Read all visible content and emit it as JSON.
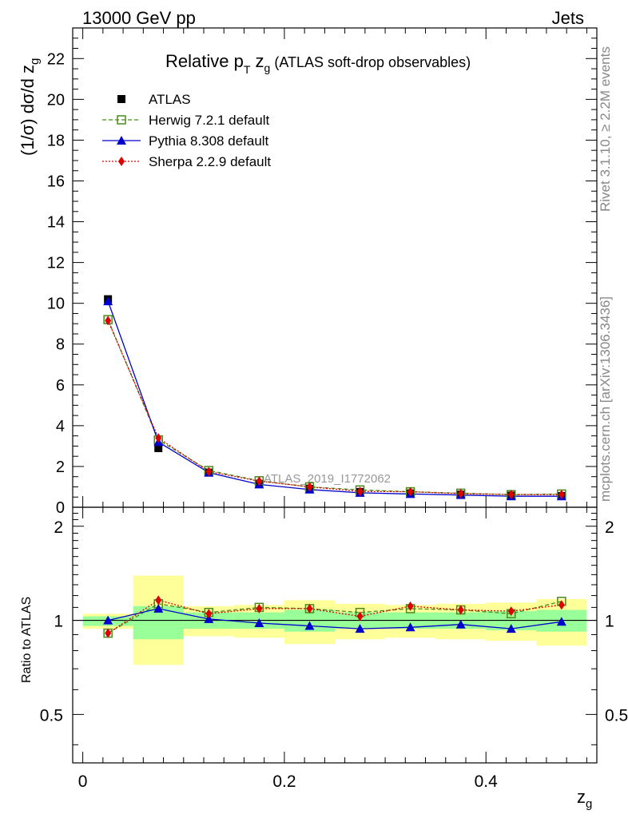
{
  "header": {
    "left": "13000 GeV pp",
    "right": "Jets"
  },
  "side_labels": {
    "rivet": "Rivet 3.1.10, ≥ 2.2M events",
    "mcplots": "mcplots.cern.ch [arXiv:1306.3436]"
  },
  "chart_data": [
    {
      "type": "line",
      "title_parts": {
        "main": "Relative p",
        "sub1": "T",
        "mid": " z",
        "sub2": "g",
        "paren": "(ATLAS soft-drop observables)"
      },
      "ylabel_parts": {
        "main": "(1/σ) dσ/d z",
        "sub": "g"
      },
      "watermark": "ATLAS_2019_I1772062",
      "xlim": [
        -0.01,
        0.51
      ],
      "ylim": [
        0,
        23.5
      ],
      "ytick_values": [
        0,
        2,
        4,
        6,
        8,
        10,
        12,
        14,
        16,
        18,
        20,
        22
      ],
      "ytick_labels": [
        "0",
        "2",
        "4",
        "6",
        "8",
        "10",
        "12",
        "14",
        "16",
        "18",
        "20",
        "22"
      ],
      "x": [
        0.025,
        0.075,
        0.125,
        0.175,
        0.225,
        0.275,
        0.325,
        0.375,
        0.425,
        0.475
      ],
      "series": [
        {
          "name": "ATLAS",
          "color": "#000000",
          "marker": "square-filled",
          "line": "none",
          "values": [
            10.2,
            2.9,
            1.7,
            1.15,
            0.9,
            0.75,
            0.68,
            0.62,
            0.57,
            0.55
          ]
        },
        {
          "name": "Herwig 7.2.1 default",
          "color": "#4a8a1a",
          "marker": "square-open",
          "line": "dashed",
          "values": [
            9.2,
            3.3,
            1.8,
            1.3,
            1.0,
            0.85,
            0.76,
            0.69,
            0.62,
            0.65
          ]
        },
        {
          "name": "Pythia 8.308 default",
          "color": "#0000cc",
          "marker": "triangle",
          "line": "solid",
          "values": [
            10.1,
            3.2,
            1.7,
            1.12,
            0.87,
            0.71,
            0.65,
            0.6,
            0.54,
            0.54
          ]
        },
        {
          "name": "Sherpa 2.2.9 default",
          "color": "#dd0000",
          "marker": "diamond",
          "line": "dotted",
          "values": [
            9.15,
            3.4,
            1.75,
            1.28,
            1.0,
            0.78,
            0.76,
            0.67,
            0.62,
            0.62
          ]
        }
      ]
    },
    {
      "type": "line",
      "ylabel": "Ratio to ATLAS",
      "xlabel_parts": {
        "main": "z",
        "sub": "g"
      },
      "xlim": [
        -0.01,
        0.51
      ],
      "ylim": [
        0.35,
        2.3
      ],
      "ytick_values": [
        0.5,
        1,
        2
      ],
      "ytick_labels": [
        "0.5",
        "1",
        "2"
      ],
      "xtick_values": [
        0,
        0.2,
        0.4
      ],
      "xtick_labels": [
        "0",
        "0.2",
        "0.4"
      ],
      "bins": [
        [
          0.0,
          0.05
        ],
        [
          0.05,
          0.1
        ],
        [
          0.1,
          0.15
        ],
        [
          0.15,
          0.2
        ],
        [
          0.2,
          0.25
        ],
        [
          0.25,
          0.3
        ],
        [
          0.3,
          0.35
        ],
        [
          0.35,
          0.4
        ],
        [
          0.4,
          0.45
        ],
        [
          0.45,
          0.5
        ]
      ],
      "band_inner": [
        [
          0.96,
          1.03
        ],
        [
          0.87,
          1.11
        ],
        [
          0.94,
          1.06
        ],
        [
          0.94,
          1.06
        ],
        [
          0.92,
          1.08
        ],
        [
          0.94,
          1.06
        ],
        [
          0.94,
          1.06
        ],
        [
          0.94,
          1.06
        ],
        [
          0.93,
          1.07
        ],
        [
          0.92,
          1.08
        ]
      ],
      "band_outer": [
        [
          0.94,
          1.05
        ],
        [
          0.72,
          1.39
        ],
        [
          0.89,
          1.11
        ],
        [
          0.88,
          1.12
        ],
        [
          0.84,
          1.16
        ],
        [
          0.87,
          1.13
        ],
        [
          0.88,
          1.12
        ],
        [
          0.87,
          1.13
        ],
        [
          0.86,
          1.14
        ],
        [
          0.83,
          1.17
        ]
      ],
      "band_colors": {
        "outer": "#ffff99",
        "inner": "#99ff99"
      },
      "x": [
        0.025,
        0.075,
        0.125,
        0.175,
        0.225,
        0.275,
        0.325,
        0.375,
        0.425,
        0.475
      ],
      "series": [
        {
          "name": "Herwig 7.2.1 default",
          "color": "#4a8a1a",
          "marker": "square-open",
          "line": "dashed",
          "values": [
            0.91,
            1.13,
            1.06,
            1.1,
            1.09,
            1.06,
            1.09,
            1.08,
            1.05,
            1.15
          ]
        },
        {
          "name": "Pythia 8.308 default",
          "color": "#0000cc",
          "marker": "triangle",
          "line": "solid",
          "values": [
            1.0,
            1.09,
            1.01,
            0.98,
            0.96,
            0.94,
            0.95,
            0.97,
            0.94,
            0.99
          ]
        },
        {
          "name": "Sherpa 2.2.9 default",
          "color": "#dd0000",
          "marker": "diamond",
          "line": "dotted",
          "values": [
            0.91,
            1.16,
            1.05,
            1.09,
            1.09,
            1.03,
            1.11,
            1.08,
            1.07,
            1.12
          ]
        }
      ]
    }
  ]
}
